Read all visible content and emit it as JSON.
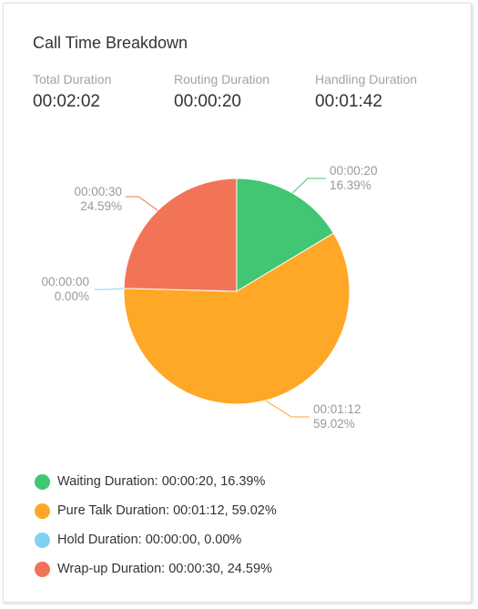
{
  "card": {
    "title": "Call Time Breakdown",
    "stats": [
      {
        "label": "Total Duration",
        "value": "00:02:02"
      },
      {
        "label": "Routing Duration",
        "value": "00:00:20"
      },
      {
        "label": "Handling Duration",
        "value": "00:01:42"
      }
    ]
  },
  "chart_data": {
    "type": "pie",
    "title": "",
    "slices": [
      {
        "name": "Waiting Duration",
        "time": "00:00:20",
        "seconds": 20,
        "percent": 16.39,
        "percent_label": "16.39%",
        "color": "#41c673",
        "legend": "Waiting Duration: 00:00:20, 16.39%"
      },
      {
        "name": "Pure Talk Duration",
        "time": "00:01:12",
        "seconds": 72,
        "percent": 59.02,
        "percent_label": "59.02%",
        "color": "#ffa726",
        "legend": "Pure Talk Duration: 00:01:12, 59.02%"
      },
      {
        "name": "Hold Duration",
        "time": "00:00:00",
        "seconds": 0,
        "percent": 0.0,
        "percent_label": "0.00%",
        "color": "#7ed3f4",
        "legend": "Hold Duration: 00:00:00, 0.00%"
      },
      {
        "name": "Wrap-up Duration",
        "time": "00:00:30",
        "seconds": 30,
        "percent": 24.59,
        "percent_label": "24.59%",
        "color": "#f17456",
        "legend": "Wrap-up Duration: 00:00:30, 24.59%"
      }
    ],
    "legend_position": "bottom-left"
  }
}
